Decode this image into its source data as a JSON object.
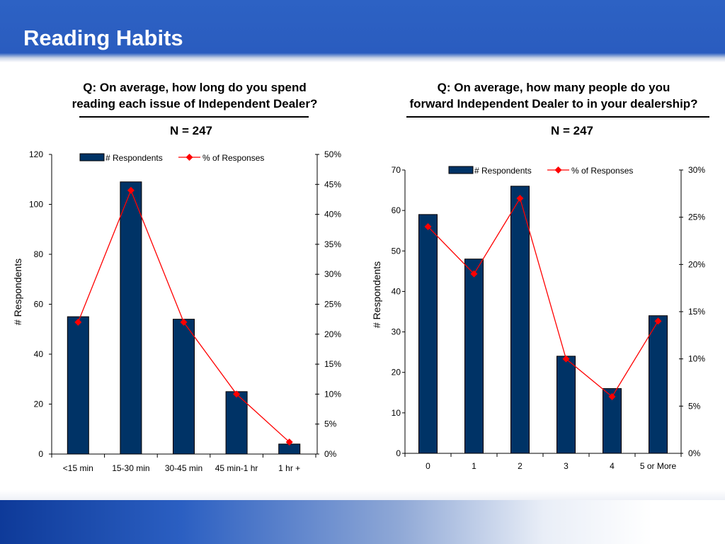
{
  "slide": {
    "title": "Reading Habits"
  },
  "colors": {
    "bar": "#003366",
    "line": "#ff0000",
    "title_bar": "#2d62c4"
  },
  "charts": [
    {
      "question_line1": "Q: On average, how long do you spend",
      "question_line2": "reading each issue of Independent Dealer?",
      "n": "N = 247"
    },
    {
      "question_line1": "Q: On average, how many people do you",
      "question_line2": "forward Independent Dealer to in your dealership?",
      "n": "N = 247"
    }
  ],
  "chart_data": [
    {
      "type": "bar",
      "categories": [
        "<15 min",
        "15-30 min",
        "30-45 min",
        "45 min-1 hr",
        "1 hr +"
      ],
      "series": [
        {
          "name": "# Respondents",
          "type": "bar",
          "axis": "left",
          "values": [
            55,
            109,
            54,
            25,
            4
          ]
        },
        {
          "name": "% of Responses",
          "type": "line",
          "axis": "right",
          "values": [
            22,
            44,
            22,
            10,
            2
          ]
        }
      ],
      "ylabel": "# Respondents",
      "ylim": [
        0,
        120
      ],
      "yticks": [
        0,
        20,
        40,
        60,
        80,
        100,
        120
      ],
      "y2lim": [
        0,
        50
      ],
      "y2ticks": [
        "0%",
        "5%",
        "10%",
        "15%",
        "20%",
        "25%",
        "30%",
        "35%",
        "40%",
        "45%",
        "50%"
      ],
      "legend": "top"
    },
    {
      "type": "bar",
      "categories": [
        "0",
        "1",
        "2",
        "3",
        "4",
        "5 or More"
      ],
      "series": [
        {
          "name": "# Respondents",
          "type": "bar",
          "axis": "left",
          "values": [
            59,
            48,
            66,
            24,
            16,
            34
          ]
        },
        {
          "name": "% of Responses",
          "type": "line",
          "axis": "right",
          "values": [
            24,
            19,
            27,
            10,
            6,
            14
          ]
        }
      ],
      "ylabel": "# Respondents",
      "ylim": [
        0,
        70
      ],
      "yticks": [
        0,
        10,
        20,
        30,
        40,
        50,
        60,
        70
      ],
      "y2lim": [
        0,
        30
      ],
      "y2ticks": [
        "0%",
        "5%",
        "10%",
        "15%",
        "20%",
        "25%",
        "30%"
      ],
      "legend": "top"
    }
  ]
}
